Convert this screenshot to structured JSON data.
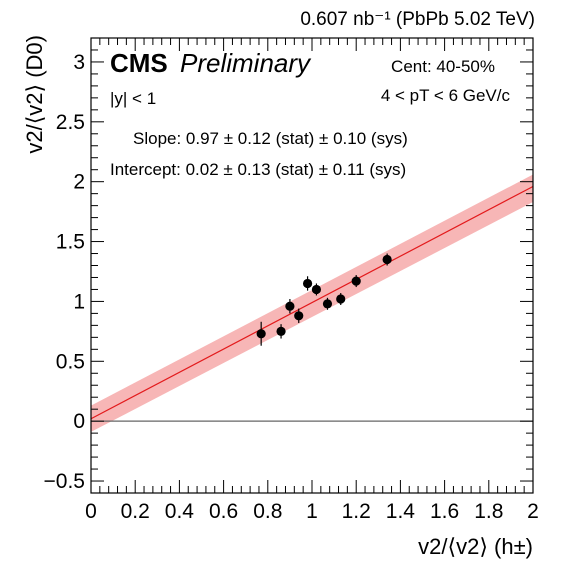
{
  "chart_data": {
    "type": "scatter",
    "lumi": "0.607 nb⁻¹ (PbPb 5.02 TeV)",
    "experiment": "CMS",
    "status": "Preliminary",
    "rapidity_cut": "|y| < 1",
    "centrality": "Cent: 40-50%",
    "pt_range": "4 < pT < 6 GeV/c",
    "slope_text": "Slope: 0.97 ± 0.12 (stat) ± 0.10 (sys)",
    "intercept_text": "Intercept: 0.02 ± 0.13 (stat) ± 0.11 (sys)",
    "xlabel": "v2/⟨v2⟩ (h±)",
    "ylabel": "v2/⟨v2⟩ (D0)",
    "xlim": [
      0,
      2
    ],
    "ylim": [
      -0.6,
      3.2
    ],
    "x_ticks": [
      "0",
      "0.2",
      "0.4",
      "0.6",
      "0.8",
      "1",
      "1.2",
      "1.4",
      "1.6",
      "1.8",
      "2"
    ],
    "y_ticks": [
      "−0.5",
      "0",
      "0.5",
      "1",
      "1.5",
      "2",
      "2.5",
      "3"
    ],
    "x": [
      0.77,
      0.86,
      0.9,
      0.94,
      0.98,
      1.02,
      1.07,
      1.13,
      1.2,
      1.34
    ],
    "y": [
      0.73,
      0.75,
      0.96,
      0.88,
      1.15,
      1.1,
      0.98,
      1.02,
      1.17,
      1.35
    ],
    "y_err": [
      0.1,
      0.06,
      0.06,
      0.06,
      0.06,
      0.05,
      0.05,
      0.05,
      0.05,
      0.05
    ],
    "fit": {
      "slope": 0.97,
      "intercept": 0.02
    },
    "fit_band": {
      "x": [
        0,
        2
      ],
      "lower": [
        -0.09,
        1.83
      ],
      "upper": [
        0.13,
        2.06
      ]
    },
    "reference_line_y": 0,
    "colors": {
      "points": "#000000",
      "fit_line": "#e31a1c",
      "fit_band": "#f7b6b6",
      "reference": "#666666"
    }
  }
}
